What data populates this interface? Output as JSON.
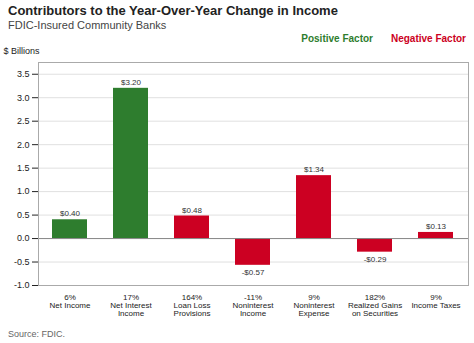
{
  "chart_data": {
    "type": "bar",
    "title": "Contributors to the Year-Over-Year Change in Income",
    "subtitle": "FDIC-Insured Community Banks",
    "ylabel": "$ Billions",
    "annotations": [
      "Source:  FDIC."
    ],
    "categories": [
      "Net Income",
      "Net Interest\nIncome",
      "Loan Loss\nProvisions",
      "Noninterest\nIncome",
      "Noninterest\nExpense",
      "Realized Gains\non Securities",
      "Income Taxes"
    ],
    "values": [
      0.4,
      3.2,
      0.48,
      -0.57,
      1.34,
      -0.29,
      0.13
    ],
    "value_labels": [
      "$0.40",
      "$3.20",
      "$0.48",
      "-$0.57",
      "$1.34",
      "-$0.29",
      "$0.13"
    ],
    "percentages": [
      "6%",
      "17%",
      "164%",
      "-11%",
      "9%",
      "182%",
      "9%"
    ],
    "colors": [
      "#2e7d2e",
      "#2e7d2e",
      "#cc0022",
      "#cc0022",
      "#cc0022",
      "#cc0022",
      "#cc0022"
    ],
    "legend_entries": [
      {
        "name": "Positive Factor",
        "color": "#2e7d2e"
      },
      {
        "name": "Negative Factor",
        "color": "#cc0022"
      }
    ],
    "ylim": [
      -1.0,
      3.75
    ],
    "yticks": [
      {
        "value": -1.0,
        "label": "-1.0"
      },
      -0.5,
      {
        "value": 0.0,
        "label": "0.0"
      },
      0.5,
      {
        "value": 1.0,
        "label": "1.0"
      },
      1.5,
      {
        "value": 2.0,
        "label": "2.0"
      },
      2.5,
      {
        "value": 3.0,
        "label": "3.0"
      },
      3.5
    ],
    "grid": true,
    "data_labels": true
  }
}
